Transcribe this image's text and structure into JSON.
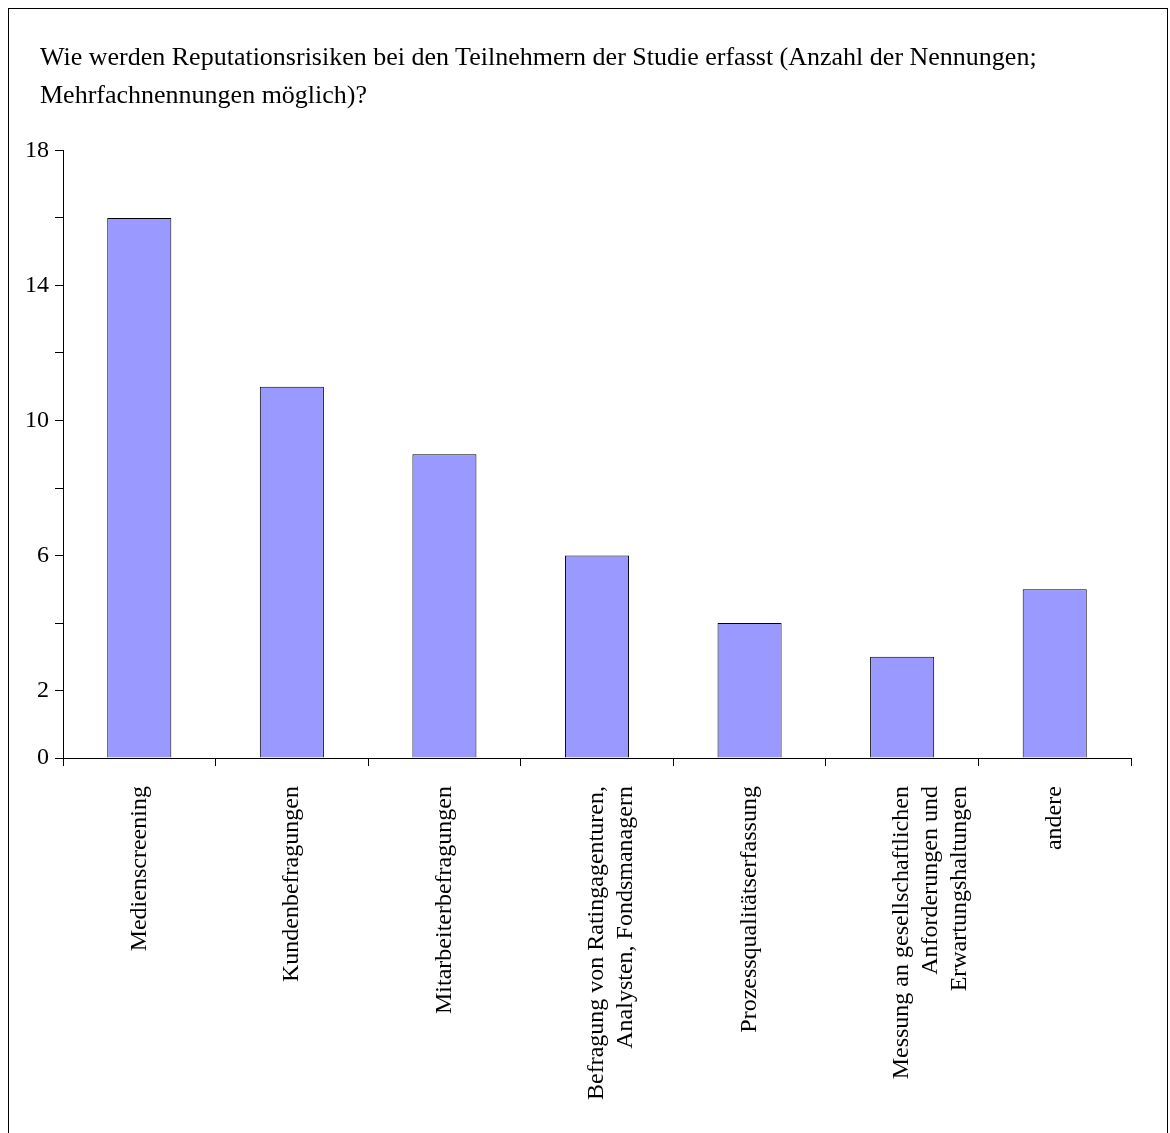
{
  "chart_data": {
    "type": "bar",
    "title": "Wie werden Reputationsrisiken bei den Teilnehmern der Studie erfasst (Anzahl der Nennungen; Mehrfachnennungen möglich)?",
    "categories": [
      "Medienscreening",
      "Kundenbefragungen",
      "Mitarbeiterbefragungen",
      "Befragung von Ratingagenturen, Analysten, Fondsmanagern",
      "Prozessqualitätserfassung",
      "Messung an gesellschaftlichen Anforderungen und Erwartungshaltungen",
      "andere"
    ],
    "values": [
      16,
      11,
      9,
      6,
      4,
      3,
      5
    ],
    "color": "#9999ff",
    "ylim": [
      0,
      18
    ],
    "yticks": [
      0,
      2,
      {
        "value": 4,
        "label": null
      },
      6,
      {
        "value": 8,
        "label": null
      },
      10,
      {
        "value": 12,
        "label": null
      },
      14,
      {
        "value": 16,
        "label": null
      },
      18
    ],
    "grid": false,
    "legend": false
  }
}
